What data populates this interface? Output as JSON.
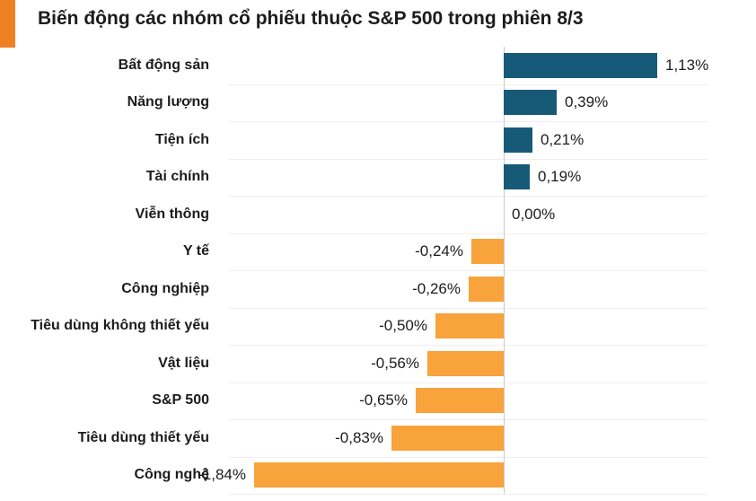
{
  "header": {
    "title": "Biến động các nhóm cổ phiếu thuộc S&P 500 trong phiên 8/3"
  },
  "colors": {
    "accent_block": "#ef8123",
    "positive_bar": "#175a78",
    "negative_bar": "#f8a33c",
    "gridline": "#efefef",
    "axis_line": "#c9c9c9",
    "text": "#1c1c1c"
  },
  "chart_data": {
    "type": "bar",
    "orientation": "horizontal",
    "title": "Biến động các nhóm cổ phiếu thuộc S&P 500 trong phiên 8/3",
    "xlabel": "",
    "ylabel": "",
    "unit": "%",
    "decimal_separator": ",",
    "xlim": [
      -2.03,
      1.5
    ],
    "grid": "horizontal-row-separators",
    "legend": "none",
    "categories": [
      "Bất động sản",
      "Năng lượng",
      "Tiện ích",
      "Tài chính",
      "Viễn thông",
      "Y tế",
      "Công nghiệp",
      "Tiêu dùng không thiết yếu",
      "Vật liệu",
      "S&P 500",
      "Tiêu dùng thiết yếu",
      "Công nghệ"
    ],
    "values": [
      1.13,
      0.39,
      0.21,
      0.19,
      0.0,
      -0.24,
      -0.26,
      -0.5,
      -0.56,
      -0.65,
      -0.83,
      -1.84
    ],
    "value_labels": [
      "1,13%",
      "0,39%",
      "0,21%",
      "0,19%",
      "0,00%",
      "-0,24%",
      "-0,26%",
      "-0,50%",
      "-0,56%",
      "-0,65%",
      "-0,83%",
      "-1,84%"
    ]
  }
}
